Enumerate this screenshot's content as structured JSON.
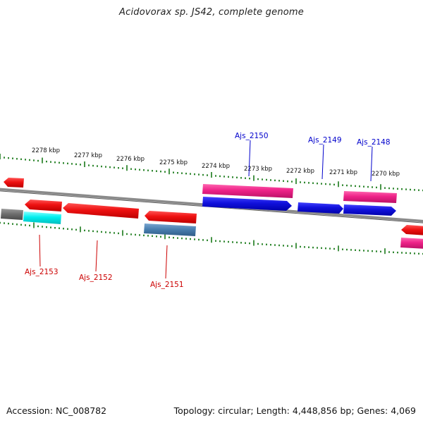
{
  "title": "Acidovorax sp. JS42, complete genome",
  "footer": {
    "accession": "Accession: NC_008782",
    "summary": "Topology: circular; Length: 4,448,856 bp; Genes: 4,069"
  },
  "colors": {
    "backbone": "#808080",
    "ticks": "#1a7a1a",
    "reverse_cds": "#ee1111",
    "forward_cds": "#1111dd",
    "pink_feature": "#ee2288",
    "cyan_feature": "#00eeee",
    "steel_feature": "#4a7fb0",
    "grey_feature": "#707070",
    "label_red": "#cc0000",
    "label_blue": "#0000cc"
  },
  "scale_labels": [
    "2278 kbp",
    "2277 kbp",
    "2276 kbp",
    "2275 kbp",
    "2274 kbp",
    "2273 kbp",
    "2272 kbp",
    "2271 kbp",
    "2270 kbp"
  ],
  "gene_labels": [
    {
      "text": "Ajs_2150",
      "strand": "forward"
    },
    {
      "text": "Ajs_2149",
      "strand": "forward"
    },
    {
      "text": "Ajs_2148",
      "strand": "forward"
    },
    {
      "text": "Ajs_2153",
      "strand": "reverse"
    },
    {
      "text": "Ajs_2152",
      "strand": "reverse"
    },
    {
      "text": "Ajs_2151",
      "strand": "reverse"
    }
  ]
}
